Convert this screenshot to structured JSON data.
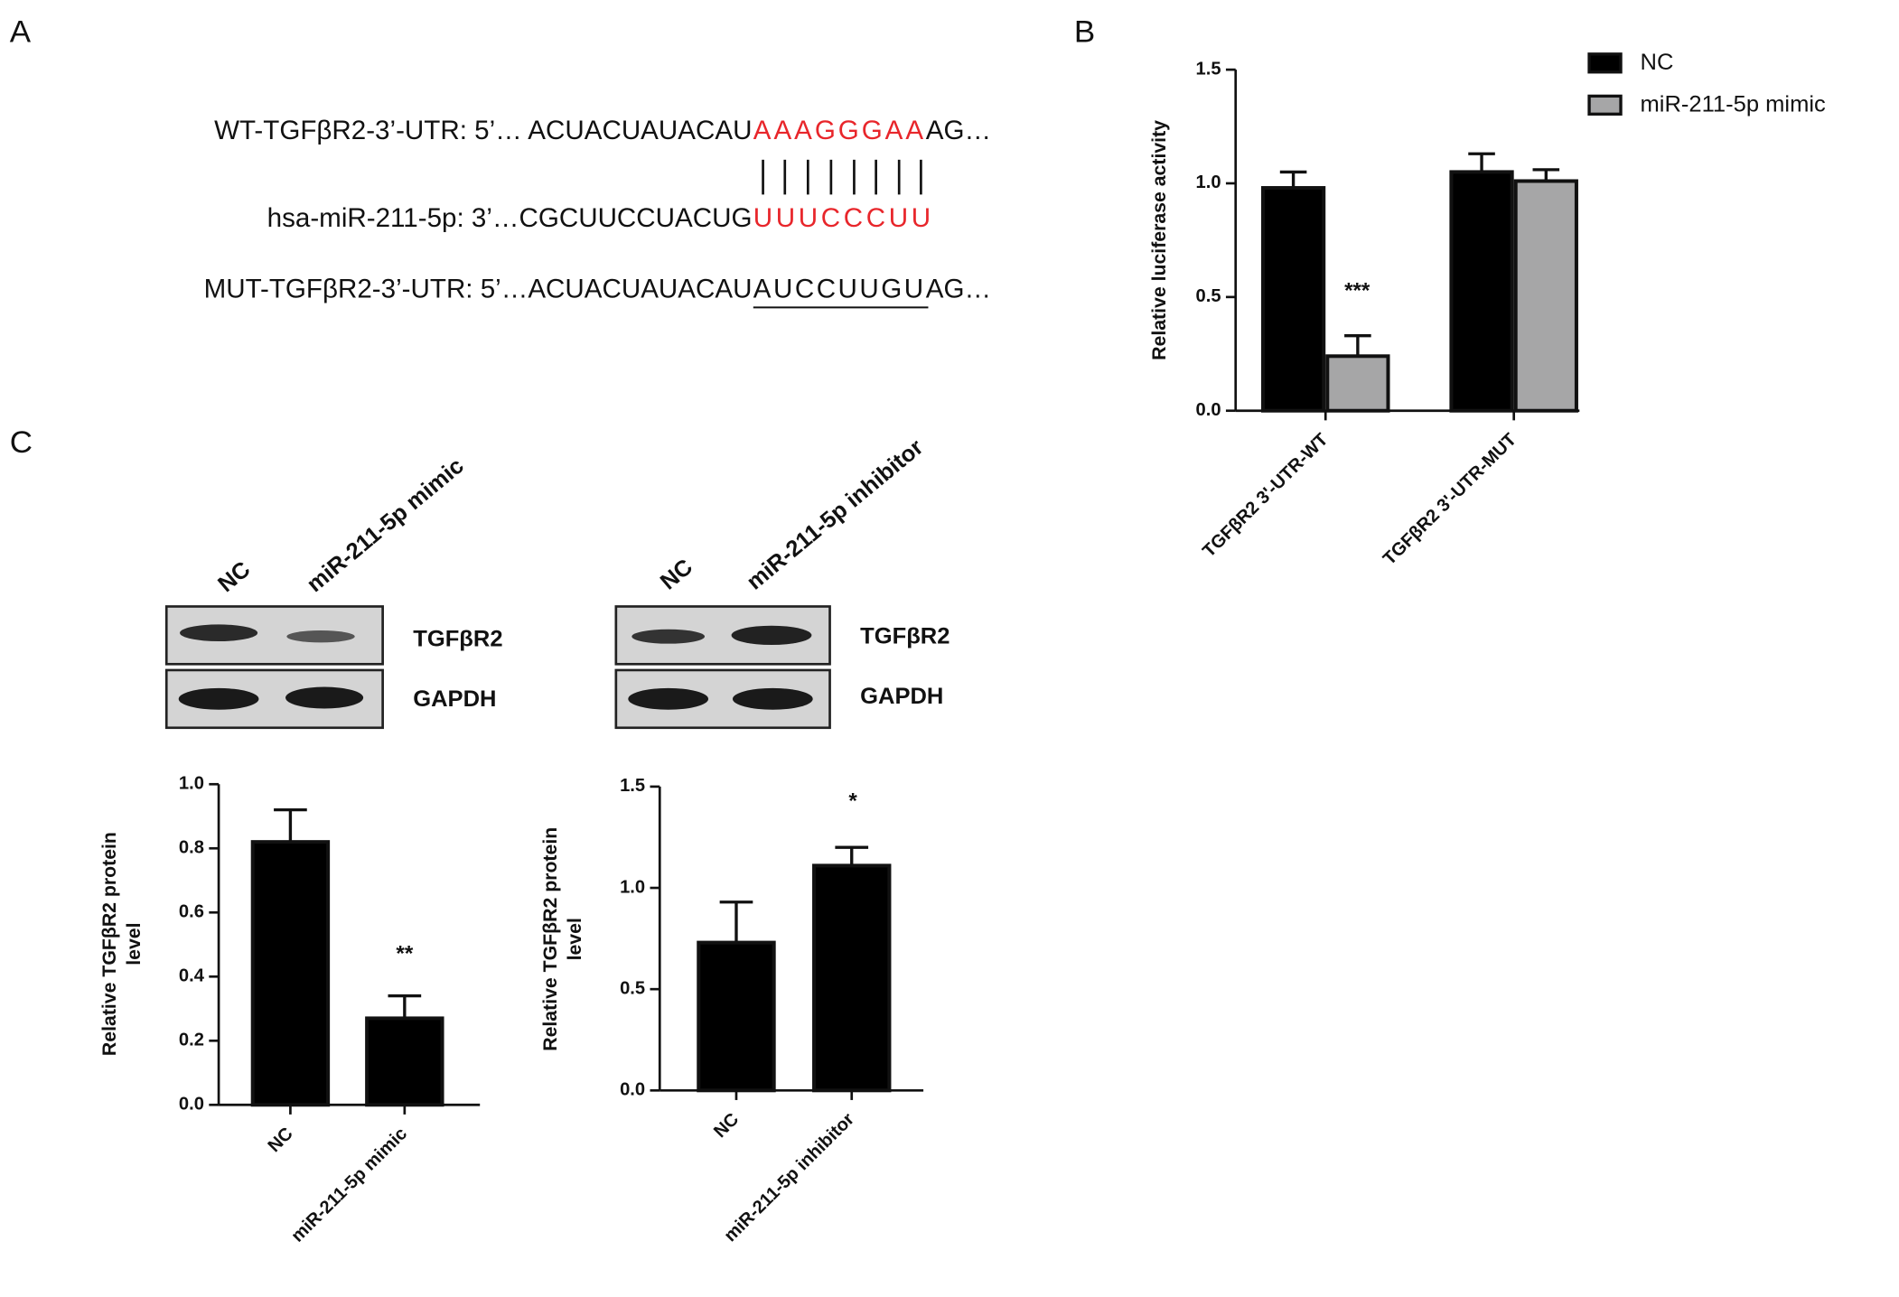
{
  "panel_labels": [
    "A",
    "B",
    "C"
  ],
  "sequences": [
    {
      "prefix": "WT-TGFβR2-3’-UTR: 5’… ACUACUAUACAU",
      "site": "AAAGGGAA",
      "suffix": "AG…"
    },
    {
      "prefix": "hsa-miR-211-5p: 3’…CGCUUCCUACUG",
      "site": "UUUCCCUU"
    },
    {
      "prefix": "MUT-TGFβR2-3’-UTR: 5’…ACUACUAUACAU",
      "site": "AUCCUUGU",
      "suffix": "AG…"
    }
  ],
  "blots": [
    {
      "lanes": [
        "NC",
        "miR-211-5p mimic"
      ],
      "proteins": [
        "TGFβR2",
        "GAPDH"
      ]
    },
    {
      "lanes": [
        "NC",
        "miR-211-5p inhibitor"
      ],
      "proteins": [
        "TGFβR2",
        "GAPDH"
      ]
    }
  ],
  "chart_data": [
    {
      "type": "bar",
      "ylabel": [
        "Relative luciferase activity"
      ],
      "categories": [
        "TGFβR2 3'-UTR-WT",
        "TGFβR2 3'-UTR-MUT"
      ],
      "series": [
        {
          "name": "NC",
          "color": "#000000",
          "values": [
            0.98,
            1.05
          ],
          "errors": [
            0.07,
            0.08
          ]
        },
        {
          "name": "miR-211-5p mimic",
          "color": "#a6a6a7",
          "values": [
            0.24,
            1.01
          ],
          "errors": [
            0.09,
            0.05
          ]
        }
      ],
      "ylim": [
        0,
        1.5
      ],
      "yticks": [
        {
          "value": 0,
          "label": "0.0"
        },
        0.5,
        {
          "value": 1,
          "label": "1.0"
        },
        1.5
      ],
      "annotations": [
        "***"
      ]
    },
    {
      "type": "bar",
      "ylabel": [
        "Relative TGFβR2 protein",
        "level"
      ],
      "categories": [
        "NC",
        "miR-211-5p mimic"
      ],
      "values": [
        0.82,
        0.27
      ],
      "errors": [
        0.1,
        0.07
      ],
      "color": "#000000",
      "ylim": [
        0,
        1
      ],
      "yticks": [
        {
          "value": 0,
          "label": "0.0"
        },
        0.2,
        0.4,
        0.6,
        0.8,
        {
          "value": 1,
          "label": "1.0"
        }
      ],
      "annotations": [
        "**"
      ]
    },
    {
      "type": "bar",
      "ylabel": [
        "Relative TGFβR2 protein",
        "level"
      ],
      "categories": [
        "NC",
        "miR-211-5p inhibitor"
      ],
      "values": [
        0.73,
        1.11
      ],
      "errors": [
        0.2,
        0.09
      ],
      "color": "#000000",
      "ylim": [
        0,
        1.5
      ],
      "yticks": [
        {
          "value": 0,
          "label": "0.0"
        },
        0.5,
        {
          "value": 1,
          "label": "1.0"
        },
        1.5
      ],
      "annotations": [
        "*"
      ]
    }
  ]
}
